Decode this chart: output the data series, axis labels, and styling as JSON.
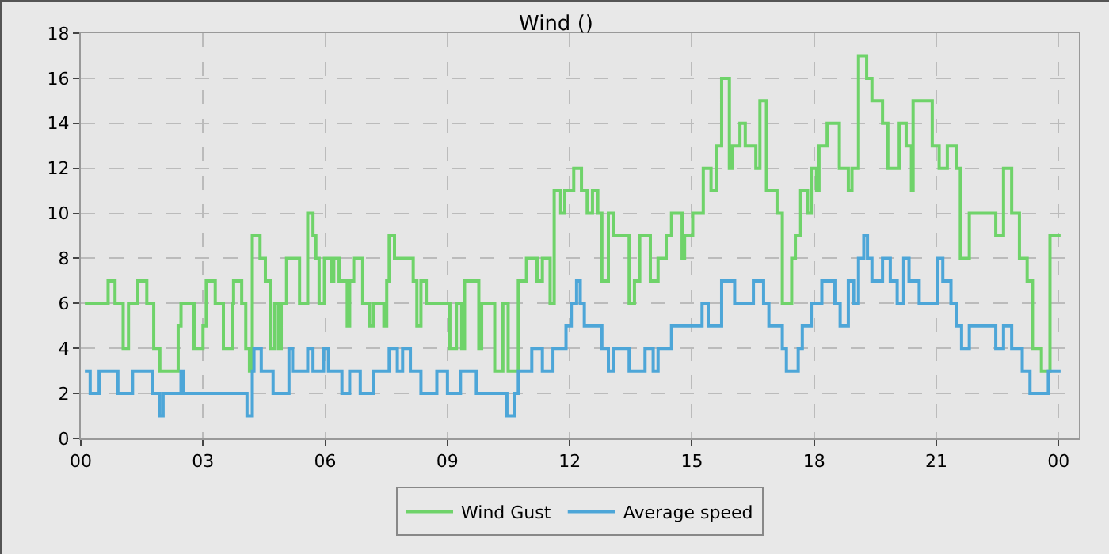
{
  "chart_data": {
    "type": "step",
    "title": "Wind ()",
    "xlim": [
      0,
      24.5
    ],
    "ylim": [
      0,
      18
    ],
    "xticks": [
      {
        "value": 0,
        "label": "00"
      },
      {
        "value": 3,
        "label": "03"
      },
      {
        "value": 6,
        "label": "06"
      },
      {
        "value": 9,
        "label": "09"
      },
      {
        "value": 12,
        "label": "12"
      },
      {
        "value": 15,
        "label": "15"
      },
      {
        "value": 18,
        "label": "18"
      },
      {
        "value": 21,
        "label": "21"
      },
      {
        "value": 24,
        "label": "00"
      }
    ],
    "yticks": [
      0,
      2,
      4,
      6,
      8,
      10,
      12,
      14,
      16,
      18
    ],
    "grid": true,
    "legend": "bottom",
    "line_style": "solid",
    "marker": "none",
    "series": [
      {
        "name": "Wind Gust",
        "color": "#6fd36a",
        "x": [
          0.1,
          0.67,
          0.84,
          1.04,
          1.17,
          1.4,
          1.62,
          1.79,
          1.94,
          2.39,
          2.46,
          2.78,
          3.0,
          3.08,
          3.3,
          3.5,
          3.73,
          3.75,
          3.95,
          4.05,
          4.14,
          4.21,
          4.4,
          4.53,
          4.66,
          4.76,
          4.85,
          4.92,
          5.05,
          5.37,
          5.57,
          5.7,
          5.77,
          5.85,
          5.98,
          6.15,
          6.21,
          6.34,
          6.54,
          6.6,
          6.7,
          6.92,
          7.09,
          7.19,
          7.44,
          7.51,
          7.57,
          7.7,
          8.16,
          8.25,
          8.35,
          8.48,
          9.06,
          9.22,
          9.35,
          9.42,
          9.77,
          9.84,
          10.16,
          10.36,
          10.49,
          10.74,
          10.94,
          11.2,
          11.33,
          11.52,
          11.62,
          11.78,
          11.88,
          12.1,
          12.29,
          12.43,
          12.56,
          12.69,
          12.79,
          12.95,
          13.08,
          13.46,
          13.59,
          13.72,
          13.98,
          14.17,
          14.37,
          14.5,
          14.76,
          14.82,
          15.02,
          15.28,
          15.47,
          15.6,
          15.73,
          15.92,
          15.99,
          16.18,
          16.31,
          16.57,
          16.67,
          16.83,
          17.09,
          17.22,
          17.45,
          17.54,
          17.67,
          17.84,
          17.93,
          18.06,
          18.12,
          18.32,
          18.62,
          18.84,
          18.93,
          19.09,
          19.29,
          19.42,
          19.68,
          19.81,
          20.09,
          20.26,
          20.39,
          20.43,
          20.9,
          21.07,
          21.27,
          21.49,
          21.59,
          21.81,
          22.46,
          22.65,
          22.85,
          23.04,
          23.23,
          23.36,
          23.58,
          23.79,
          24.05
        ],
        "values": [
          6,
          7,
          6,
          4,
          6,
          7,
          6,
          4,
          3,
          5,
          6,
          4,
          5,
          7,
          6,
          4,
          6,
          7,
          6,
          4,
          3,
          9,
          8,
          7,
          4,
          6,
          4,
          6,
          8,
          6,
          10,
          9,
          8,
          6,
          8,
          7,
          8,
          7,
          5,
          7,
          8,
          6,
          5,
          6,
          5,
          7,
          9,
          8,
          7,
          5,
          7,
          6,
          4,
          6,
          4,
          7,
          4,
          6,
          3,
          6,
          3,
          7,
          8,
          7,
          8,
          6,
          11,
          10,
          11,
          12,
          11,
          10,
          11,
          10,
          7,
          10,
          9,
          6,
          7,
          9,
          7,
          8,
          9,
          10,
          8,
          9,
          10,
          12,
          11,
          13,
          16,
          12,
          13,
          14,
          13,
          12,
          15,
          11,
          10,
          6,
          8,
          9,
          11,
          10,
          12,
          11,
          13,
          14,
          12,
          11,
          12,
          17,
          16,
          15,
          14,
          12,
          14,
          13,
          11,
          15,
          13,
          12,
          13,
          12,
          8,
          10,
          9,
          12,
          10,
          8,
          7,
          4,
          3,
          9,
          9
        ]
      },
      {
        "name": "Average speed",
        "color": "#4da6d8",
        "x": [
          0.1,
          0.23,
          0.45,
          0.91,
          1.27,
          1.75,
          1.94,
          2.02,
          2.46,
          2.52,
          4.01,
          4.08,
          4.21,
          4.25,
          4.43,
          4.72,
          5.11,
          5.2,
          5.57,
          5.7,
          5.96,
          6.08,
          6.41,
          6.6,
          6.86,
          7.19,
          7.57,
          7.77,
          7.9,
          8.09,
          8.35,
          8.74,
          9.0,
          9.32,
          9.71,
          10.46,
          10.64,
          10.74,
          11.07,
          11.33,
          11.59,
          11.91,
          12.04,
          12.17,
          12.26,
          12.36,
          12.79,
          12.95,
          13.08,
          13.46,
          13.85,
          14.05,
          14.17,
          14.5,
          15.25,
          15.4,
          15.73,
          16.05,
          16.12,
          16.51,
          16.76,
          16.89,
          17.22,
          17.32,
          17.61,
          17.71,
          17.93,
          18.19,
          18.51,
          18.64,
          18.84,
          18.97,
          19.09,
          19.22,
          19.31,
          19.42,
          19.68,
          19.87,
          20.04,
          20.2,
          20.33,
          20.58,
          21.03,
          21.16,
          21.36,
          21.49,
          21.62,
          21.81,
          22.46,
          22.65,
          22.85,
          23.11,
          23.3,
          23.75,
          24.05
        ],
        "values": [
          3,
          2,
          3,
          2,
          3,
          2,
          1,
          2,
          3,
          2,
          2,
          1,
          3,
          4,
          3,
          2,
          4,
          3,
          4,
          3,
          4,
          3,
          2,
          3,
          2,
          3,
          4,
          3,
          4,
          3,
          2,
          3,
          2,
          3,
          2,
          1,
          2,
          3,
          4,
          3,
          4,
          5,
          6,
          7,
          6,
          5,
          4,
          3,
          4,
          3,
          4,
          3,
          4,
          5,
          6,
          5,
          7,
          6,
          6,
          7,
          6,
          5,
          4,
          3,
          4,
          5,
          6,
          7,
          6,
          5,
          7,
          6,
          8,
          9,
          8,
          7,
          8,
          7,
          6,
          8,
          7,
          6,
          8,
          7,
          6,
          5,
          4,
          5,
          4,
          5,
          4,
          3,
          2,
          3,
          3
        ]
      }
    ]
  }
}
